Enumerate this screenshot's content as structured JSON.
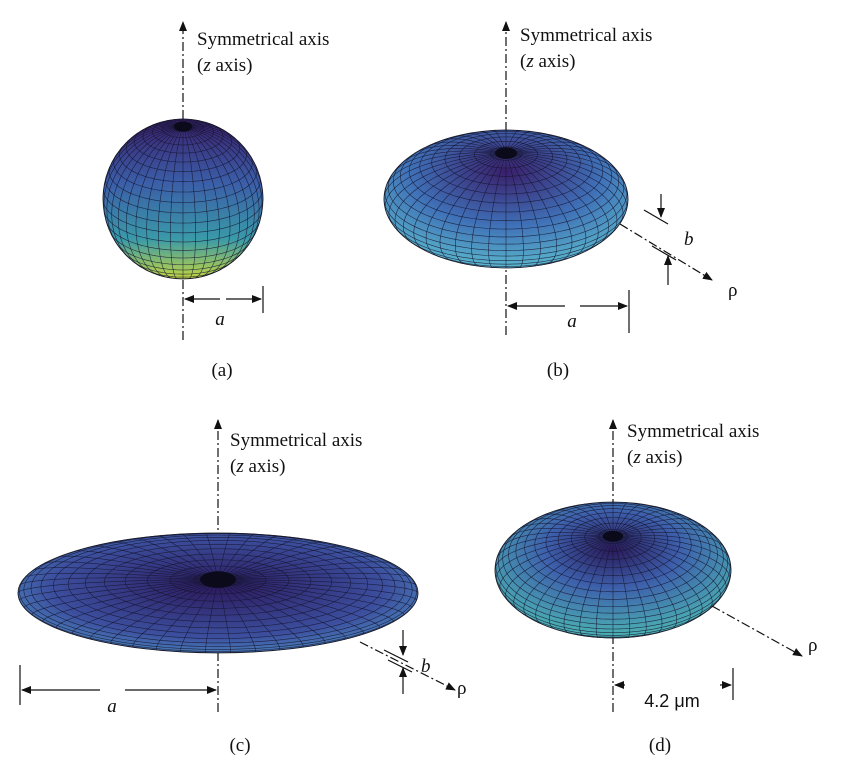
{
  "panels": [
    {
      "axis_label": "Symmetrical axis",
      "axis_label_2": [
        "(",
        "z",
        " axis)"
      ],
      "dimensions": [
        "a"
      ],
      "caption": "(a)"
    },
    {
      "axis_label": "Symmetrical axis",
      "axis_label_2": [
        "(",
        "z",
        " axis)"
      ],
      "dimensions": [
        "b",
        "a"
      ],
      "direction": "ρ",
      "caption": "(b)"
    },
    {
      "axis_label": "Symmetrical axis",
      "axis_label_2": [
        "(",
        "z",
        " axis)"
      ],
      "dimensions": [
        "b",
        "a"
      ],
      "direction": "ρ",
      "caption": "(c)"
    },
    {
      "axis_label": "Symmetrical axis",
      "axis_label_2": [
        "(",
        "z",
        " axis)"
      ],
      "dimensions": [
        "4.2 μm"
      ],
      "direction": "ρ",
      "caption": "(d)"
    }
  ]
}
